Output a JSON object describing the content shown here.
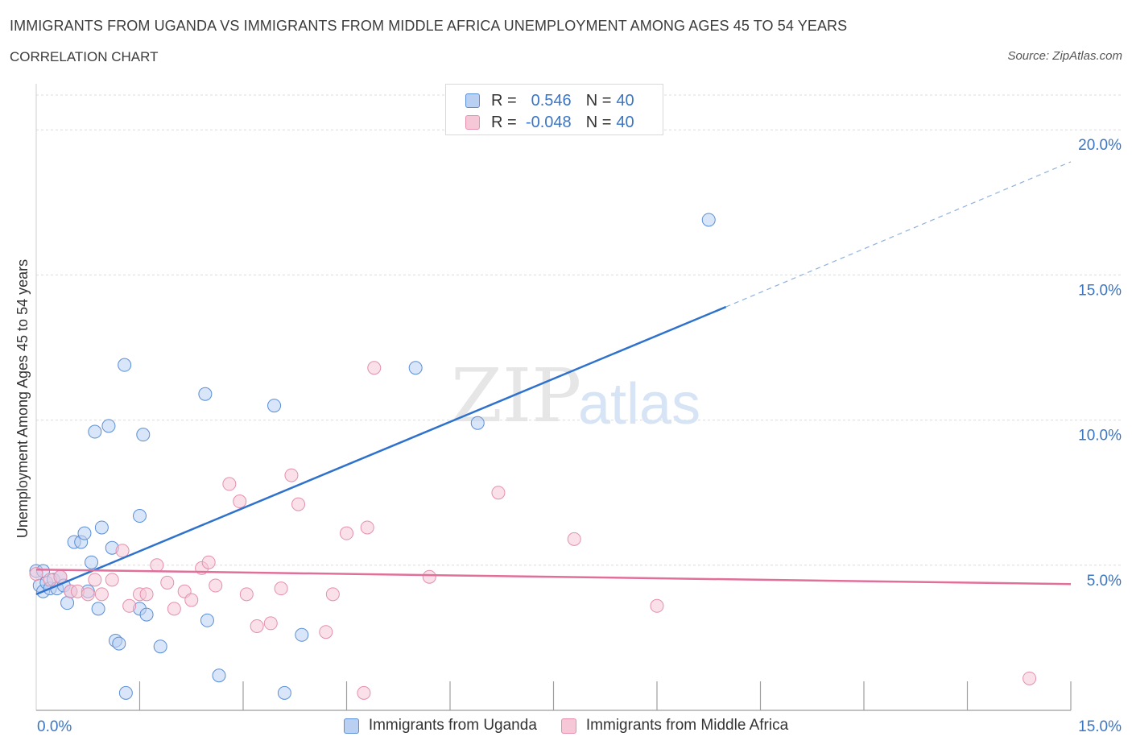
{
  "header": {
    "title": "IMMIGRANTS FROM UGANDA VS IMMIGRANTS FROM MIDDLE AFRICA UNEMPLOYMENT AMONG AGES 45 TO 54 YEARS",
    "subtitle": "CORRELATION CHART",
    "source": "Source: ZipAtlas.com"
  },
  "watermark": {
    "zip": "ZIP",
    "atlas": "atlas"
  },
  "legend": {
    "r_label": "R =",
    "n_label": "N =",
    "items": [
      {
        "r": "0.546",
        "n": "40",
        "color": "#3a76c4"
      },
      {
        "r": "-0.048",
        "n": "40",
        "color": "#e36f95"
      }
    ]
  },
  "chart_data": {
    "type": "scatter",
    "ylabel": "Unemployment Among Ages 45 to 54 years",
    "xlim": [
      0,
      15
    ],
    "ylim": [
      0,
      20
    ],
    "x_tick_labels": [
      "0.0%",
      "15.0%"
    ],
    "y_ticks": [
      5,
      10,
      15,
      20
    ],
    "y_tick_labels": [
      "5.0%",
      "10.0%",
      "15.0%",
      "20.0%"
    ],
    "grid": "horizontal dashed",
    "series": [
      {
        "name": "Immigrants from Uganda",
        "color": "#5b8fd6",
        "fill": "#b9d0f2",
        "points": [
          [
            0.0,
            4.8
          ],
          [
            0.05,
            4.3
          ],
          [
            0.1,
            4.1
          ],
          [
            0.15,
            4.4
          ],
          [
            0.2,
            4.2
          ],
          [
            0.25,
            4.5
          ],
          [
            0.3,
            4.2
          ],
          [
            0.35,
            4.6
          ],
          [
            0.4,
            4.3
          ],
          [
            0.45,
            3.7
          ],
          [
            0.5,
            4.1
          ],
          [
            0.55,
            5.8
          ],
          [
            0.65,
            5.8
          ],
          [
            0.7,
            6.1
          ],
          [
            0.75,
            4.1
          ],
          [
            0.8,
            5.1
          ],
          [
            0.85,
            9.6
          ],
          [
            0.9,
            3.5
          ],
          [
            0.95,
            6.3
          ],
          [
            1.05,
            9.8
          ],
          [
            1.1,
            5.6
          ],
          [
            1.15,
            2.4
          ],
          [
            1.2,
            2.3
          ],
          [
            1.3,
            0.6
          ],
          [
            1.28,
            11.9
          ],
          [
            1.5,
            3.5
          ],
          [
            1.5,
            6.7
          ],
          [
            1.55,
            9.5
          ],
          [
            1.6,
            3.3
          ],
          [
            1.8,
            2.2
          ],
          [
            2.45,
            10.9
          ],
          [
            2.48,
            3.1
          ],
          [
            2.65,
            1.2
          ],
          [
            3.45,
            10.5
          ],
          [
            3.6,
            0.6
          ],
          [
            3.85,
            2.6
          ],
          [
            5.5,
            11.8
          ],
          [
            6.4,
            9.9
          ],
          [
            9.75,
            16.9
          ],
          [
            0.1,
            4.8
          ]
        ]
      },
      {
        "name": "Immigrants from Middle Africa",
        "color": "#e58fac",
        "fill": "#f6c8d7",
        "points": [
          [
            0.0,
            4.7
          ],
          [
            0.2,
            4.5
          ],
          [
            0.35,
            4.6
          ],
          [
            0.5,
            4.1
          ],
          [
            0.6,
            4.1
          ],
          [
            0.75,
            4.0
          ],
          [
            0.85,
            4.5
          ],
          [
            0.95,
            4.0
          ],
          [
            1.1,
            4.5
          ],
          [
            1.25,
            5.5
          ],
          [
            1.35,
            3.6
          ],
          [
            1.5,
            4.0
          ],
          [
            1.6,
            4.0
          ],
          [
            1.75,
            5.0
          ],
          [
            1.9,
            4.4
          ],
          [
            2.0,
            3.5
          ],
          [
            2.15,
            4.1
          ],
          [
            2.25,
            3.8
          ],
          [
            2.4,
            4.9
          ],
          [
            2.5,
            5.1
          ],
          [
            2.6,
            4.3
          ],
          [
            2.8,
            7.8
          ],
          [
            2.95,
            7.2
          ],
          [
            3.05,
            4.0
          ],
          [
            3.2,
            2.9
          ],
          [
            3.4,
            3.0
          ],
          [
            3.55,
            4.2
          ],
          [
            3.7,
            8.1
          ],
          [
            3.8,
            7.1
          ],
          [
            4.2,
            2.7
          ],
          [
            4.3,
            4.0
          ],
          [
            4.5,
            6.1
          ],
          [
            4.75,
            0.6
          ],
          [
            4.8,
            6.3
          ],
          [
            4.9,
            11.8
          ],
          [
            5.7,
            4.6
          ],
          [
            6.7,
            7.5
          ],
          [
            7.8,
            5.9
          ],
          [
            9.0,
            3.6
          ],
          [
            14.4,
            1.1
          ]
        ]
      }
    ],
    "trend_lines": [
      {
        "series": "Immigrants from Uganda",
        "x_start": 0.0,
        "y_start": 4.0,
        "x_end": 10.0,
        "y_end": 13.9,
        "dashed_to_x": 15.0,
        "dashed_to_y": 18.9
      },
      {
        "series": "Immigrants from Middle Africa",
        "x_start": 0.0,
        "y_start": 4.85,
        "x_end": 15.0,
        "y_end": 4.35
      }
    ]
  }
}
